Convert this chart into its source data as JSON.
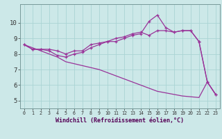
{
  "xlabel": "Windchill (Refroidissement éolien,°C)",
  "background_color": "#cce8e8",
  "line_color": "#993399",
  "xlim": [
    -0.5,
    23.5
  ],
  "ylim": [
    4.5,
    11.2
  ],
  "xticks": [
    0,
    1,
    2,
    3,
    4,
    5,
    6,
    7,
    8,
    9,
    10,
    11,
    12,
    13,
    14,
    15,
    16,
    17,
    18,
    19,
    20,
    21,
    22,
    23
  ],
  "yticks": [
    5,
    6,
    7,
    8,
    9,
    10
  ],
  "grid_color": "#aad4d4",
  "line1_x": [
    0,
    1,
    2,
    3,
    4,
    5,
    6,
    7,
    8,
    9,
    10,
    11,
    12,
    13,
    14,
    15,
    16,
    17,
    18,
    19,
    20,
    21,
    22,
    23
  ],
  "line1_y": [
    8.6,
    8.3,
    8.3,
    8.3,
    8.2,
    8.0,
    8.2,
    8.2,
    8.6,
    8.7,
    8.8,
    9.0,
    9.1,
    9.3,
    9.4,
    9.2,
    9.5,
    9.5,
    9.4,
    9.5,
    9.5,
    8.8,
    6.2,
    5.4
  ],
  "line2_x": [
    0,
    1,
    2,
    3,
    4,
    5,
    6,
    7,
    8,
    9,
    10,
    11,
    12,
    13,
    14,
    15,
    16,
    17,
    18,
    19,
    20,
    21,
    22,
    23
  ],
  "line2_y": [
    8.6,
    8.3,
    8.3,
    8.2,
    7.9,
    7.8,
    8.0,
    8.1,
    8.4,
    8.6,
    8.8,
    8.8,
    9.0,
    9.2,
    9.3,
    10.1,
    10.5,
    9.7,
    9.4,
    9.5,
    9.5,
    8.8,
    6.2,
    5.4
  ],
  "line3_x": [
    0,
    4,
    5,
    9,
    10,
    11,
    12,
    13,
    14,
    15,
    16,
    17,
    18,
    19,
    20,
    21,
    22,
    23
  ],
  "line3_y": [
    8.6,
    7.8,
    7.5,
    7.0,
    6.8,
    6.6,
    6.4,
    6.2,
    6.0,
    5.8,
    5.6,
    5.5,
    5.4,
    5.3,
    5.25,
    5.2,
    6.2,
    5.4
  ]
}
